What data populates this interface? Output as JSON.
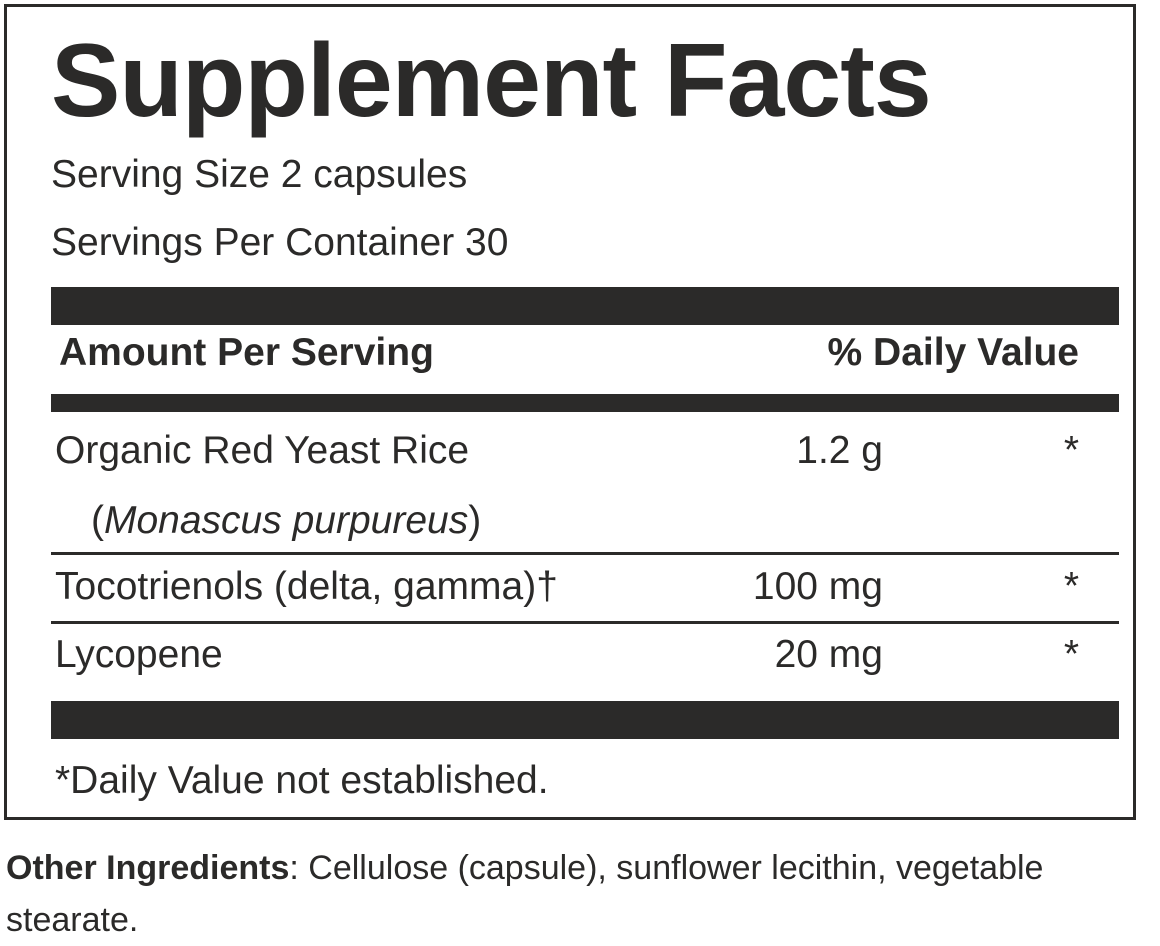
{
  "panel": {
    "title": "Supplement Facts",
    "serving_size": "Serving Size 2 capsules",
    "servings_per_container": "Servings Per Container 30",
    "header_left": "Amount Per Serving",
    "header_right": "% Daily Value",
    "rows": [
      {
        "name": "Organic Red Yeast Rice",
        "sub_open": "(",
        "sub_italic": "Monascus purpureus",
        "sub_close": ")",
        "amount": "1.2 g",
        "dv": "*"
      },
      {
        "name": "Tocotrienols (delta, gamma)†",
        "amount": "100 mg",
        "dv": "*"
      },
      {
        "name": "Lycopene",
        "amount": "20 mg",
        "dv": "*"
      }
    ],
    "footnote": "*Daily Value not established."
  },
  "other_ingredients": {
    "label": "Other Ingredients",
    "separator": ": ",
    "text": "Cellulose (capsule), sunflower lecithin, vegetable stearate."
  },
  "colors": {
    "ink": "#2b2a29",
    "background": "#ffffff"
  }
}
